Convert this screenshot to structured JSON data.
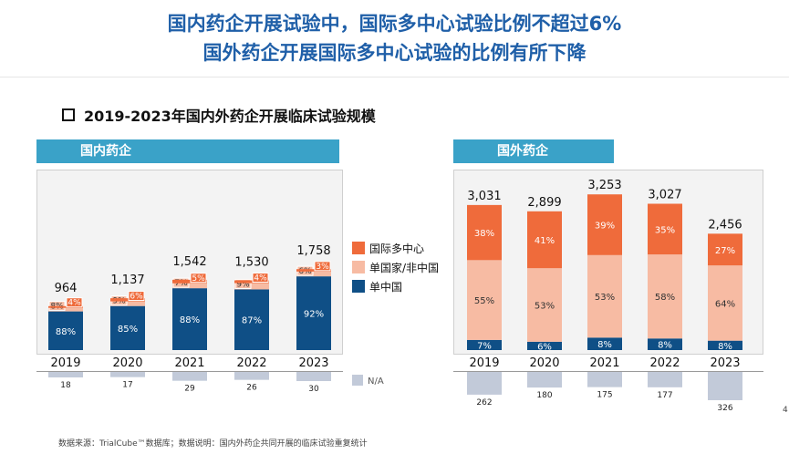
{
  "title_line1": "国内药企开展试验中，国际多中心试验比例不超过6%",
  "title_line2": "国外药企开展国际多中心试验的比例有所下降",
  "section_title": "2019-2023年国内外药企开展临床试验规模",
  "footer": "数据来源：TrialCube™数据库；数据说明：国内外药企共同开展的临床试验重复统计",
  "page_number": "4",
  "colors": {
    "mrct": "#ef6b3b",
    "single_foreign": "#f7bba3",
    "single_china": "#0f4f86",
    "na": "#c2cad9",
    "header": "#3aa2c8",
    "title": "#1f5fa8"
  },
  "legend": {
    "mrct": "国际多中心",
    "single_foreign": "单国家/非中国",
    "single_china": "单中国",
    "na": "N/A"
  },
  "chart_data": [
    {
      "type": "bar",
      "stacked": true,
      "title": "国内药企",
      "categories": [
        "2019",
        "2020",
        "2021",
        "2022",
        "2023"
      ],
      "totals": [
        "964",
        "1,137",
        "1,542",
        "1,530",
        "1,758"
      ],
      "total_values": [
        964,
        1137,
        1542,
        1530,
        1758
      ],
      "series": [
        {
          "name": "单中国",
          "percent": [
            88,
            85,
            88,
            87,
            92
          ],
          "labels": [
            "88%",
            "85%",
            "88%",
            "87%",
            "92%"
          ]
        },
        {
          "name": "单国家/非中国",
          "percent": [
            8,
            9,
            7,
            9,
            6
          ],
          "labels": [
            "8%",
            "9%",
            "7%",
            "9%",
            "6%"
          ]
        },
        {
          "name": "国际多中心",
          "percent": [
            4,
            6,
            5,
            4,
            3
          ],
          "labels": [
            "4%",
            "6%",
            "5%",
            "4%",
            "3%"
          ]
        }
      ],
      "na": {
        "name": "N/A",
        "values": [
          18,
          17,
          29,
          26,
          30
        ],
        "labels": [
          "18",
          "17",
          "29",
          "26",
          "30"
        ]
      }
    },
    {
      "type": "bar",
      "stacked": true,
      "title": "国外药企",
      "categories": [
        "2019",
        "2020",
        "2021",
        "2022",
        "2023"
      ],
      "totals": [
        "3,031",
        "2,899",
        "3,253",
        "3,027",
        "2,456"
      ],
      "total_values": [
        3031,
        2899,
        3253,
        3027,
        2456
      ],
      "series": [
        {
          "name": "单中国",
          "percent": [
            7,
            6,
            8,
            8,
            8
          ],
          "labels": [
            "7%",
            "6%",
            "8%",
            "8%",
            "8%"
          ]
        },
        {
          "name": "单国家/非中国",
          "percent": [
            55,
            53,
            53,
            58,
            64
          ],
          "labels": [
            "55%",
            "53%",
            "53%",
            "58%",
            "64%"
          ]
        },
        {
          "name": "国际多中心",
          "percent": [
            38,
            41,
            39,
            35,
            27
          ],
          "labels": [
            "38%",
            "41%",
            "39%",
            "35%",
            "27%"
          ]
        }
      ],
      "na": {
        "name": "N/A",
        "values": [
          262,
          180,
          175,
          177,
          326
        ],
        "labels": [
          "262",
          "180",
          "175",
          "177",
          "326"
        ]
      }
    }
  ]
}
